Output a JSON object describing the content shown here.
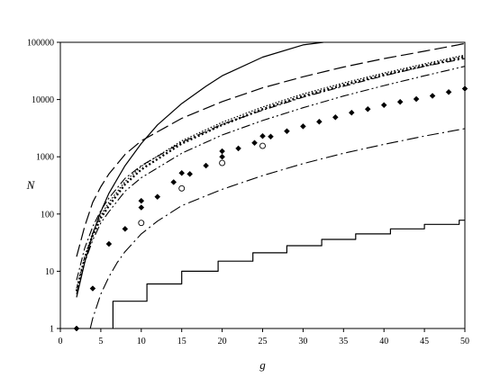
{
  "chart_data": {
    "type": "line",
    "xlabel": "g",
    "ylabel": "N",
    "xlim": [
      0,
      50
    ],
    "ylim": [
      1,
      100000
    ],
    "yscale": "log",
    "grid": false,
    "legend": "none",
    "x_ticks": [
      "0",
      "5",
      "10",
      "15",
      "20",
      "25",
      "30",
      "35",
      "40",
      "45",
      "50"
    ],
    "y_ticks": [
      "1",
      "10",
      "100",
      "1000",
      "10000",
      "100000"
    ],
    "series": [
      {
        "style": "solid",
        "color": "#000000",
        "x": [
          2,
          3,
          4,
          5,
          6,
          8,
          10,
          12,
          15,
          18,
          20,
          25,
          30,
          32.5
        ],
        "y": [
          3.5,
          14,
          45,
          110,
          230,
          700,
          1700,
          3600,
          8500,
          17000,
          26000,
          55000,
          90000,
          100000
        ]
      },
      {
        "style": "long-dash",
        "color": "#000000",
        "x": [
          2,
          3,
          4,
          5,
          6,
          8,
          10,
          15,
          20,
          25,
          30,
          35,
          40,
          45,
          50
        ],
        "y": [
          18,
          60,
          160,
          300,
          500,
          1100,
          1900,
          4700,
          9200,
          16000,
          25000,
          37000,
          52000,
          70000,
          95000
        ]
      },
      {
        "style": "dash-dot",
        "color": "#000000",
        "x": [
          2,
          3,
          4,
          5,
          6,
          8,
          10,
          15,
          20,
          25,
          30,
          35,
          40,
          45,
          50
        ],
        "y": [
          7,
          25,
          60,
          115,
          190,
          420,
          700,
          1800,
          3700,
          6500,
          11000,
          17000,
          26000,
          38000,
          52000
        ]
      },
      {
        "style": "dotted-fine",
        "color": "#000000",
        "x": [
          2,
          3,
          4,
          5,
          6,
          8,
          10,
          15,
          20,
          25,
          30,
          35,
          40,
          45,
          50
        ],
        "y": [
          5,
          18,
          47,
          95,
          160,
          370,
          680,
          1900,
          4000,
          7400,
          12500,
          19500,
          29000,
          42000,
          60000
        ]
      },
      {
        "style": "dotted-bold",
        "color": "#000000",
        "x": [
          2,
          3,
          4,
          5,
          6,
          8,
          10,
          15,
          20,
          25,
          30,
          35,
          40,
          45,
          50
        ],
        "y": [
          4.5,
          16,
          42,
          85,
          140,
          330,
          600,
          1700,
          3600,
          6800,
          11500,
          18000,
          27000,
          39000,
          56000
        ]
      },
      {
        "style": "dash-dot-dot",
        "color": "#000000",
        "x": [
          2,
          3,
          4,
          5,
          6,
          8,
          10,
          15,
          20,
          25,
          30,
          35,
          40,
          45,
          50
        ],
        "y": [
          4,
          14,
          35,
          70,
          110,
          250,
          430,
          1150,
          2400,
          4300,
          7200,
          11500,
          17500,
          26000,
          38000
        ]
      },
      {
        "style": "long-dash-dot",
        "color": "#000000",
        "x": [
          3.7,
          4,
          5,
          6,
          7,
          8,
          10,
          12,
          15,
          20,
          25,
          30,
          35,
          40,
          45,
          50
        ],
        "y": [
          1,
          1.5,
          4,
          8,
          14,
          22,
          45,
          75,
          140,
          270,
          470,
          760,
          1150,
          1650,
          2300,
          3100
        ]
      },
      {
        "style": "step",
        "color": "#000000",
        "x": [
          6.5,
          6.5,
          10.7,
          10.7,
          15,
          15,
          19.5,
          19.5,
          23.8,
          23.8,
          28,
          28,
          32.3,
          32.3,
          36.5,
          36.5,
          40.8,
          40.8,
          45,
          45,
          49.3,
          49.3,
          50
        ],
        "y": [
          1,
          3,
          3,
          6,
          6,
          10,
          10,
          15,
          15,
          21,
          21,
          28,
          28,
          36,
          36,
          45,
          45,
          55,
          55,
          66,
          66,
          78,
          78
        ]
      },
      {
        "style": "marker-diamond-filled",
        "color": "#000000",
        "x": [
          2,
          4,
          6,
          8,
          10,
          10,
          12,
          14,
          15,
          16,
          18,
          20,
          20,
          22,
          24,
          25,
          26,
          28,
          30,
          32,
          34,
          36,
          38,
          40,
          42,
          44,
          46,
          48,
          50
        ],
        "y": [
          1,
          5,
          30,
          55,
          130,
          170,
          200,
          360,
          520,
          500,
          700,
          1000,
          1250,
          1400,
          1750,
          2300,
          2250,
          2800,
          3400,
          4100,
          4900,
          5900,
          6800,
          8000,
          9100,
          10200,
          11600,
          13500,
          15500
        ]
      },
      {
        "style": "marker-circle-open",
        "color": "#000000",
        "x": [
          10,
          15,
          20,
          25
        ],
        "y": [
          70,
          280,
          780,
          1550
        ]
      }
    ]
  }
}
